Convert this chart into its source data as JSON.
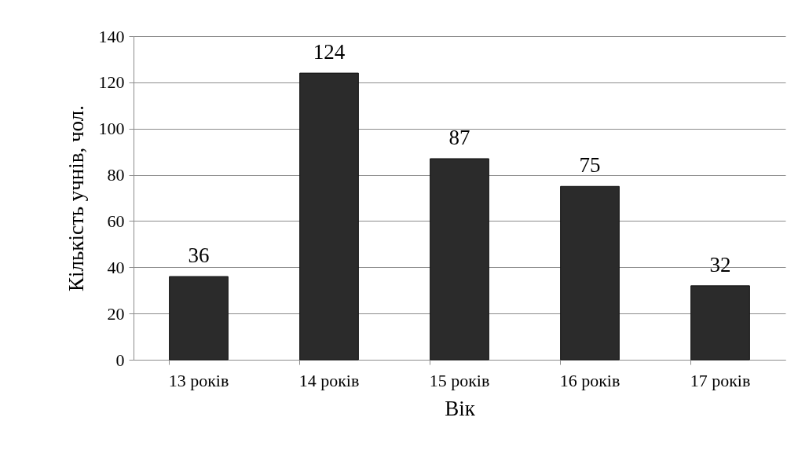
{
  "chart_data": {
    "type": "bar",
    "xlabel": "Вік",
    "ylabel": "Кількість учнів, чол.",
    "categories": [
      "13 років",
      "14 років",
      "15 років",
      "16 років",
      "17 років"
    ],
    "values": [
      36,
      124,
      87,
      75,
      32
    ],
    "color": "#2b2b2b",
    "ylim": [
      0,
      140
    ],
    "yticks": [
      0,
      20,
      40,
      60,
      80,
      100,
      120,
      140
    ],
    "grid": "y",
    "data_labels": true
  }
}
